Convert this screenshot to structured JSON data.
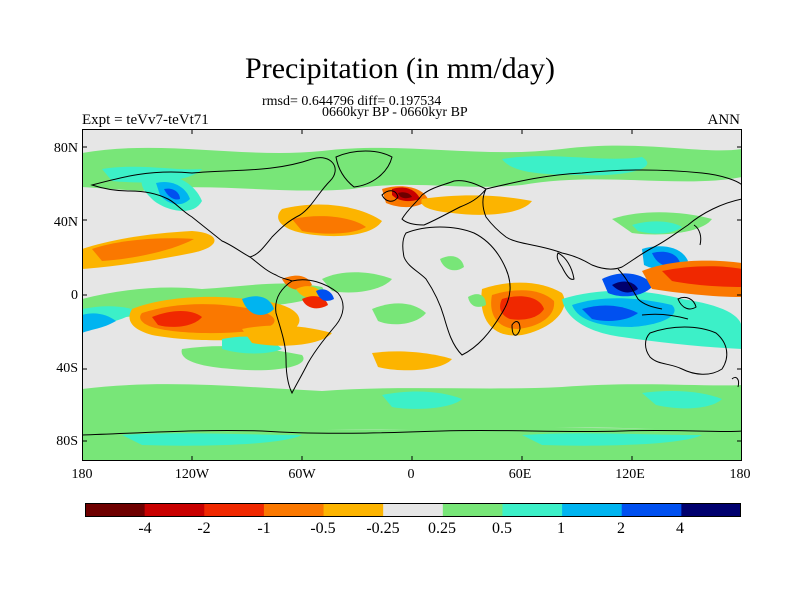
{
  "header": {
    "title": "Precipitation (in mm/day)",
    "stats": "rmsd= 0.644796 diff= 0.197534",
    "period": "0660kyr BP - 0660kyr BP",
    "experiment": "Expt = teVv7-teVt71",
    "season": "ANN"
  },
  "axes": {
    "lat_labels": [
      "80N",
      "40N",
      "0",
      "40S",
      "80S"
    ],
    "lon_labels": [
      "180",
      "120W",
      "60W",
      "0",
      "60E",
      "120E",
      "180"
    ]
  },
  "colorbar": {
    "labels": [
      "-4",
      "-2",
      "-1",
      "-0.5",
      "-0.25",
      "0.25",
      "0.5",
      "1",
      "2",
      "4"
    ],
    "colors": [
      "#6e0000",
      "#c80000",
      "#f02800",
      "#fa7800",
      "#fcb400",
      "#e6e6e6",
      "#78e678",
      "#3cf0c8",
      "#00b4f0",
      "#0050f0",
      "#00006e"
    ]
  },
  "map": {
    "ocean_neutral": "#e6e6e6",
    "coast_color": "#000000"
  }
}
